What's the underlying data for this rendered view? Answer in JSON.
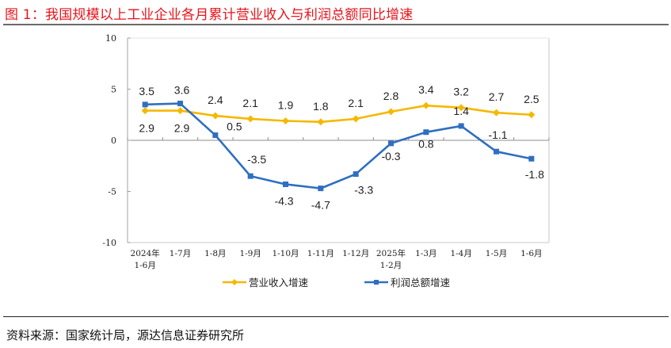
{
  "figure": {
    "title": "图 1：我国规模以上工业企业各月累计营业收入与利润总额同比增速",
    "source": "资料来源：国家统计局，源达信息证券研究所"
  },
  "chart_data": {
    "type": "line",
    "title": "我国规模以上工业企业各月累计营业收入与利润总额同比增速",
    "xlabel": "",
    "ylabel": "",
    "ylim": [
      -10,
      10
    ],
    "yticks": [
      10,
      5,
      0,
      -5,
      -10
    ],
    "grid": false,
    "legend_position": "bottom",
    "categories": [
      "2024年\n1-6月",
      "1-7月",
      "1-8月",
      "1-9月",
      "1-10月",
      "1-11月",
      "1-12月",
      "2025年\n1-2月",
      "1-3月",
      "1-4月",
      "1-5月",
      "1-6月"
    ],
    "categories_display": [
      [
        "2024年",
        "1-6月"
      ],
      [
        "1-7月"
      ],
      [
        "1-8月"
      ],
      [
        "1-9月"
      ],
      [
        "1-10月"
      ],
      [
        "1-11月"
      ],
      [
        "1-12月"
      ],
      [
        "2025年",
        "1-2月"
      ],
      [
        "1-3月"
      ],
      [
        "1-4月"
      ],
      [
        "1-5月"
      ],
      [
        "1-6月"
      ]
    ],
    "series": [
      {
        "name": "营业收入增速",
        "color": "#f5b800",
        "marker": "diamond",
        "values": [
          2.9,
          2.9,
          2.4,
          2.1,
          1.9,
          1.8,
          2.1,
          2.8,
          3.4,
          3.2,
          2.7,
          2.5
        ]
      },
      {
        "name": "利润总额增速",
        "color": "#2f6fbf",
        "marker": "square",
        "values": [
          3.5,
          3.6,
          0.5,
          -3.5,
          -4.3,
          -4.7,
          -3.3,
          -0.3,
          0.8,
          1.4,
          -1.1,
          -1.8
        ]
      }
    ]
  },
  "legend": {
    "revenue": "营业收入增速",
    "profit": "利润总额增速"
  },
  "colors": {
    "title": "#e8141b",
    "revenue": "#f5b800",
    "profit": "#2f6fbf",
    "axis": "#a0a0a0"
  }
}
